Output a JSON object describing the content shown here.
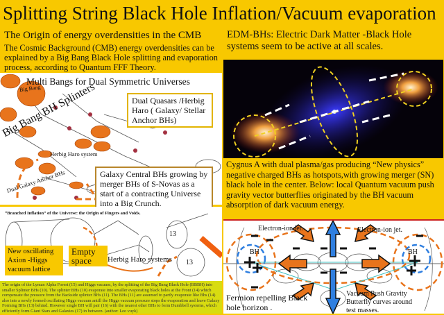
{
  "title": "Splitting String Black Hole Inflation/Vacuum evaporation",
  "left": {
    "heading": "The Origin of energy overdensities in the CMB",
    "body": "The Cosmic Background (CMB) energy overdensities can be explained by a Big Bang Black Hole splitting and evaporation process, according to Quantum FFF Theory."
  },
  "diagram1": {
    "title": "Multi Bangs for Dual Symmetric Universes",
    "splinters_label": "Big Bang BH Splinters",
    "big_bang_label": "Big Bang",
    "herbig_label": "Herbig Haro system",
    "anchor_label": "Dual Galaxy Anchor BHs",
    "callout_quasars": "Dual Quasars /Herbig Haro ( Galaxy/ Stellar Anchor BHs)",
    "callout_central": "Galaxy Central BHs growing by merger BHs of S-Novas as a start of a contracting Universe into a Big Crunch."
  },
  "diagram2": {
    "caption": "“Branched Inflation” of the Universe: the Origin of Fingers and Voids.",
    "axion_label": "New oscillating Axion -Higgs vacuum lattice",
    "empty_label": "Empty space",
    "herbig_label": "Herbig Haro systems",
    "num_a": "13",
    "num_b": "13"
  },
  "bottom_text": "The origin of the Lyman Alpha Forest (15) and Higgs vacuum, by the splitting of the Big Bang Black Hole (BBBH) into smaller Splinter BHs (10).      The splinter BHs (10) evaporate into smaller evaporating black holes at the Front (14) which compensate the pressure from the Backside splinter BHs (11).      The BHs (11) are assumed to partly evaporate like Bhs (14) also into a newly formed oscillating Higgs vacuum antill the Higgs vacuum pressure stops the evaporation and leave Galaxy Forming BHs (13) behind.      However single BH will pair (16) with the nearest other BHs to form Dumbbell systems, which efficiently form Giant Stars and Galaxies (17) in between. (author: Leo vuyk)",
  "right": {
    "edm_text": "EDM-BHs: Electric Dark Matter -Black Hole systems seem to be active at all scales.",
    "cygnus_caption": "Cygnus A with dual plasma/gas producing “New physics” negative charged BHs as hotspots,with growing merger (SN) black hole in the center.  Below: local Quantum vacuum push gravity vector butterflies originated by the BH vacuum absorption of dark vacuum energy."
  },
  "diagram3": {
    "jet_left": "Electron-ion jet.",
    "jet_right": "Electron-ion jet.",
    "bh_left": "BH",
    "bh_right": "BH",
    "fermion_label": "Fermion repelling Black hole horizon .",
    "vacuum_label": "Vacuum Push Gravity Butterfly curves around test masses."
  },
  "colors": {
    "background": "#f8c800",
    "accent_orange": "#e8741c",
    "jet_blue": "#2f7fe0",
    "bottom_box": "#d8dc10"
  }
}
